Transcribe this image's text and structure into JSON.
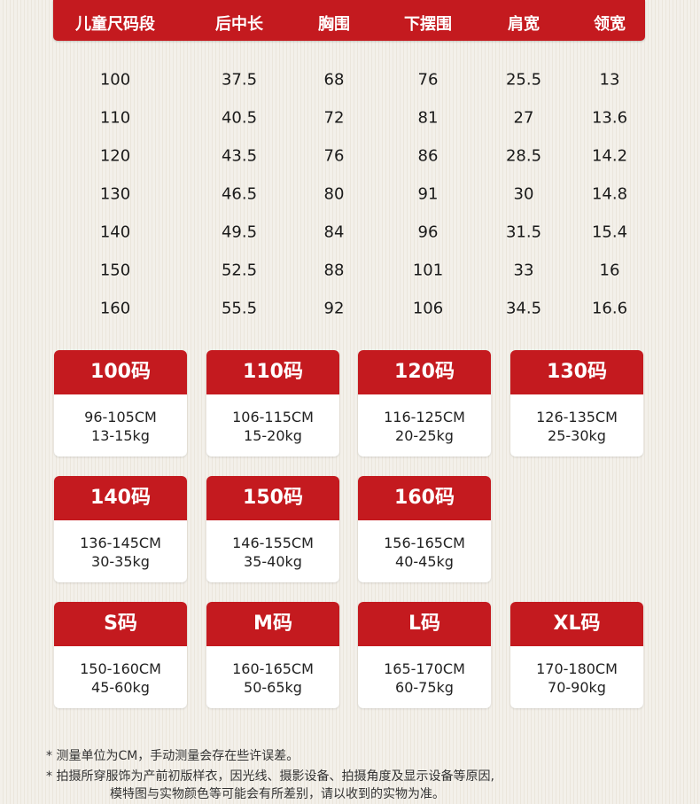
{
  "table": {
    "headers": [
      "儿童尺码段",
      "后中长",
      "胸围",
      "下摆围",
      "肩宽",
      "领宽"
    ],
    "rows": [
      [
        "100",
        "37.5",
        "68",
        "76",
        "25.5",
        "13"
      ],
      [
        "110",
        "40.5",
        "72",
        "81",
        "27",
        "13.6"
      ],
      [
        "120",
        "43.5",
        "76",
        "86",
        "28.5",
        "14.2"
      ],
      [
        "130",
        "46.5",
        "80",
        "91",
        "30",
        "14.8"
      ],
      [
        "140",
        "49.5",
        "84",
        "96",
        "31.5",
        "15.4"
      ],
      [
        "150",
        "52.5",
        "88",
        "101",
        "33",
        "16"
      ],
      [
        "160",
        "55.5",
        "92",
        "106",
        "34.5",
        "16.6"
      ]
    ]
  },
  "cards": [
    {
      "title": "100码",
      "height": "96-105CM",
      "weight": "13-15kg"
    },
    {
      "title": "110码",
      "height": "106-115CM",
      "weight": "15-20kg"
    },
    {
      "title": "120码",
      "height": "116-125CM",
      "weight": "20-25kg"
    },
    {
      "title": "130码",
      "height": "126-135CM",
      "weight": "25-30kg"
    },
    {
      "title": "140码",
      "height": "136-145CM",
      "weight": "30-35kg"
    },
    {
      "title": "150码",
      "height": "146-155CM",
      "weight": "35-40kg"
    },
    {
      "title": "160码",
      "height": "156-165CM",
      "weight": "40-45kg"
    },
    {
      "title": "S码",
      "height": "150-160CM",
      "weight": "45-60kg"
    },
    {
      "title": "M码",
      "height": "160-165CM",
      "weight": "50-65kg"
    },
    {
      "title": "L码",
      "height": "165-170CM",
      "weight": "60-75kg"
    },
    {
      "title": "XL码",
      "height": "170-180CM",
      "weight": "70-90kg"
    }
  ],
  "notes": [
    "* 测量单位为CM，手动测量会存在些许误差。",
    "* 拍摄所穿服饰为产前初版样衣，因光线、摄影设备、拍摄角度及显示设备等原因,",
    "模特图与实物颜色等可能会有所差别，请以收到的实物为准。"
  ],
  "colors": {
    "accent": "#c41a1f"
  }
}
